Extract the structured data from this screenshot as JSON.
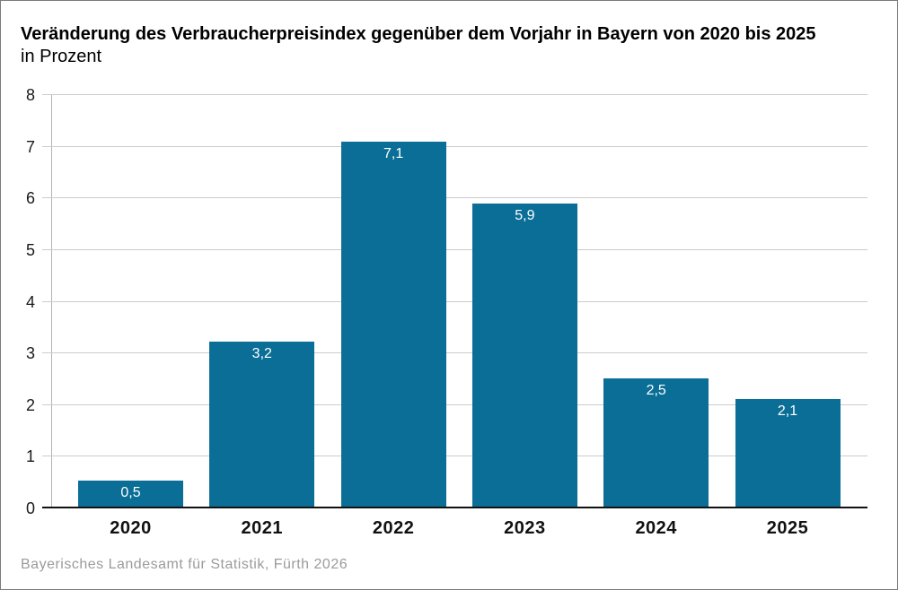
{
  "frame": {
    "background": "#ffffff",
    "border_color": "#7a7a7a"
  },
  "chart_data": {
    "type": "bar",
    "title": "Veränderung des Verbraucherpreisindex gegenüber dem Vorjahr in Bayern von 2020 bis 2025",
    "subtitle": "in Prozent",
    "categories": [
      "2020",
      "2021",
      "2022",
      "2023",
      "2024",
      "2025"
    ],
    "values": [
      0.5,
      3.2,
      7.1,
      5.9,
      2.5,
      2.1
    ],
    "value_labels": [
      "0,5",
      "3,2",
      "7,1",
      "5,9",
      "2,5",
      "2,1"
    ],
    "xlabel": "",
    "ylabel": "",
    "ylim": [
      0,
      8
    ],
    "yticks": [
      "0",
      "1",
      "2",
      "3",
      "4",
      "5",
      "6",
      "7",
      "8"
    ],
    "grid": true,
    "legend": "none",
    "bar_color": "#0b6e96",
    "value_label_color": "#ffffff",
    "source": "Bayerisches Landesamt für Statistik, Fürth 2026"
  },
  "colors": {
    "gridline": "#cccccc",
    "axis_line": "#b3b3b3",
    "zero_line": "#111111",
    "label_text": "#111111",
    "source_text": "#9b9b9b"
  }
}
